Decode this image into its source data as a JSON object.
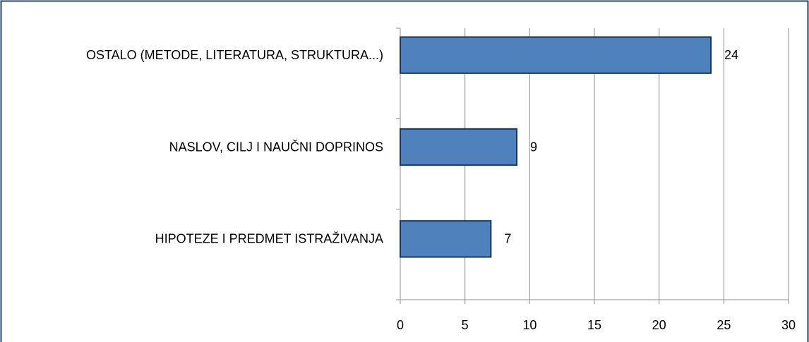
{
  "chart_data": {
    "type": "bar",
    "orientation": "horizontal",
    "categories": [
      "OSTALO (METODE, LITERATURA, STRUKTURA...)",
      "NASLOV, CILJ I NAUČNI DOPRINOS",
      "HIPOTEZE I PREDMET ISTRAŽIVANJA"
    ],
    "values": [
      24,
      9,
      7
    ],
    "color": "#4f81bd",
    "edgecolor": "#17365d",
    "xlim": [
      0,
      30
    ],
    "xticks": [
      0,
      5,
      10,
      15,
      20,
      25,
      30
    ],
    "grid": true
  }
}
